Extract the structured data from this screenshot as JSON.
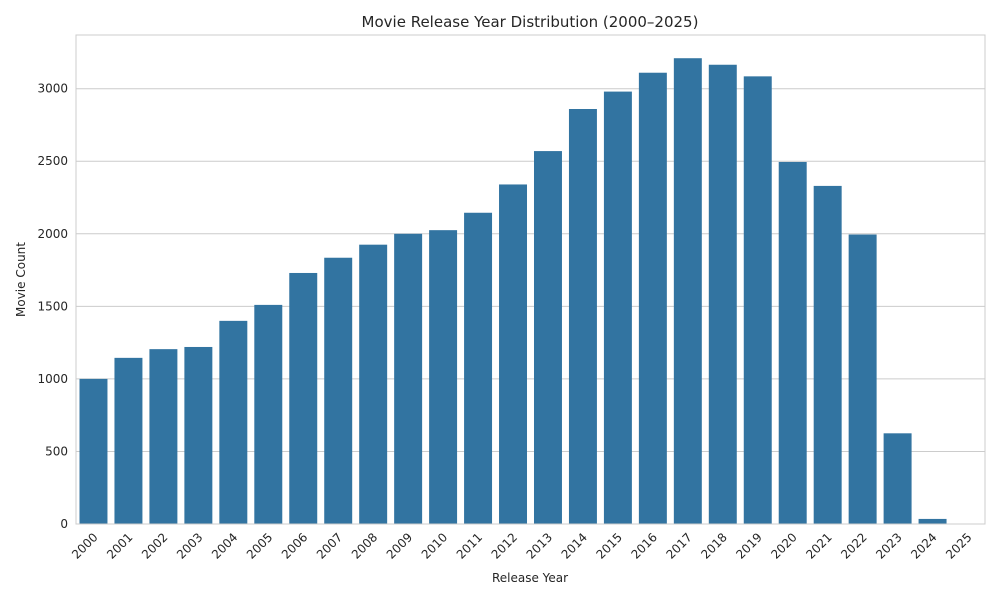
{
  "chart_data": {
    "type": "bar",
    "title": "Movie Release Year Distribution (2000–2025)",
    "xlabel": "Release Year",
    "ylabel": "Movie Count",
    "categories": [
      "2000",
      "2001",
      "2002",
      "2003",
      "2004",
      "2005",
      "2006",
      "2007",
      "2008",
      "2009",
      "2010",
      "2011",
      "2012",
      "2013",
      "2014",
      "2015",
      "2016",
      "2017",
      "2018",
      "2019",
      "2020",
      "2021",
      "2022",
      "2023",
      "2024",
      "2025"
    ],
    "values": [
      1000,
      1145,
      1205,
      1220,
      1400,
      1510,
      1730,
      1835,
      1925,
      2000,
      2025,
      2145,
      2340,
      2570,
      2860,
      2980,
      3110,
      3210,
      3165,
      3085,
      2495,
      2330,
      1995,
      625,
      35,
      2
    ],
    "ylim": [
      0,
      3370
    ],
    "yticks": [
      0,
      500,
      1000,
      1500,
      2000,
      2500,
      3000
    ],
    "bar_color": "#3274a1",
    "grid": true,
    "tick_rotation_deg": 45
  }
}
